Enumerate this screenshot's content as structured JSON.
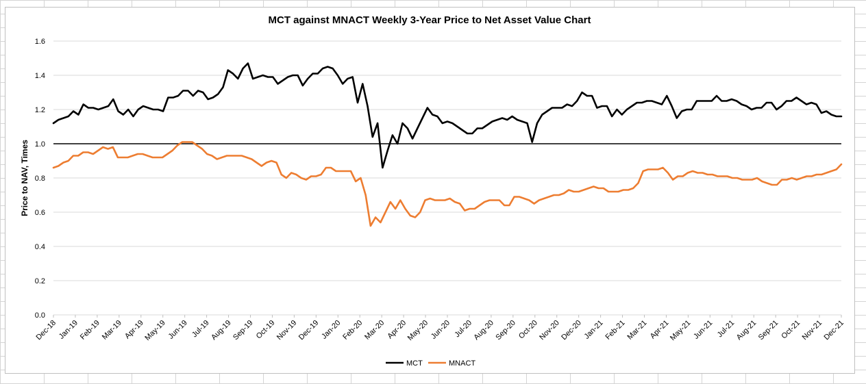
{
  "chart_data": {
    "type": "line",
    "title": "MCT against MNACT Weekly 3-Year Price to Net Asset Value Chart",
    "xlabel": "",
    "ylabel": "Price to NAV, Times",
    "ylim": [
      0,
      1.6
    ],
    "yticks": [
      "0.0",
      "0.2",
      "0.4",
      "0.6",
      "0.8",
      "1.0",
      "1.2",
      "1.4",
      "1.6"
    ],
    "grid": "horizontal",
    "legend": "bottom-center",
    "reference_line": 1.0,
    "x_tick_labels": [
      "Dec-18",
      "Jan-19",
      "Feb-19",
      "Mar-19",
      "Apr-19",
      "May-19",
      "Jun-19",
      "Jul-19",
      "Aug-19",
      "Sep-19",
      "Oct-19",
      "Nov-19",
      "Dec-19",
      "Jan-20",
      "Feb-20",
      "Mar-20",
      "Apr-20",
      "May-20",
      "Jun-20",
      "Jul-20",
      "Aug-20",
      "Sep-20",
      "Oct-20",
      "Nov-20",
      "Dec-20",
      "Jan-21",
      "Feb-21",
      "Mar-21",
      "Apr-21",
      "May-21",
      "Jun-21",
      "Jul-21",
      "Aug-21",
      "Sep-21",
      "Oct-21",
      "Nov-21",
      "Dec-21"
    ],
    "series": [
      {
        "name": "MCT",
        "color": "#000000",
        "values": [
          1.12,
          1.14,
          1.15,
          1.16,
          1.19,
          1.17,
          1.23,
          1.21,
          1.21,
          1.2,
          1.21,
          1.22,
          1.26,
          1.19,
          1.17,
          1.2,
          1.16,
          1.2,
          1.22,
          1.21,
          1.2,
          1.2,
          1.19,
          1.27,
          1.27,
          1.28,
          1.31,
          1.31,
          1.28,
          1.31,
          1.3,
          1.26,
          1.27,
          1.29,
          1.33,
          1.43,
          1.41,
          1.38,
          1.44,
          1.47,
          1.38,
          1.39,
          1.4,
          1.39,
          1.39,
          1.35,
          1.37,
          1.39,
          1.4,
          1.4,
          1.34,
          1.38,
          1.41,
          1.41,
          1.44,
          1.45,
          1.44,
          1.4,
          1.35,
          1.38,
          1.39,
          1.24,
          1.35,
          1.22,
          1.04,
          1.12,
          0.86,
          0.96,
          1.05,
          1.0,
          1.12,
          1.09,
          1.03,
          1.09,
          1.15,
          1.21,
          1.17,
          1.16,
          1.12,
          1.13,
          1.12,
          1.1,
          1.08,
          1.06,
          1.06,
          1.09,
          1.09,
          1.11,
          1.13,
          1.14,
          1.15,
          1.14,
          1.16,
          1.14,
          1.13,
          1.12,
          1.01,
          1.12,
          1.17,
          1.19,
          1.21,
          1.21,
          1.21,
          1.23,
          1.22,
          1.25,
          1.3,
          1.28,
          1.28,
          1.21,
          1.22,
          1.22,
          1.16,
          1.2,
          1.17,
          1.2,
          1.22,
          1.24,
          1.24,
          1.25,
          1.25,
          1.24,
          1.23,
          1.28,
          1.22,
          1.15,
          1.19,
          1.2,
          1.2,
          1.25,
          1.25,
          1.25,
          1.25,
          1.28,
          1.25,
          1.25,
          1.26,
          1.25,
          1.23,
          1.22,
          1.2,
          1.21,
          1.21,
          1.24,
          1.24,
          1.2,
          1.22,
          1.25,
          1.25,
          1.27,
          1.25,
          1.23,
          1.24,
          1.23,
          1.18,
          1.19,
          1.17,
          1.16,
          1.16
        ]
      },
      {
        "name": "MNACT",
        "color": "#ED7D31",
        "values": [
          0.86,
          0.87,
          0.89,
          0.9,
          0.93,
          0.93,
          0.95,
          0.95,
          0.94,
          0.96,
          0.98,
          0.97,
          0.98,
          0.92,
          0.92,
          0.92,
          0.93,
          0.94,
          0.94,
          0.93,
          0.92,
          0.92,
          0.92,
          0.94,
          0.96,
          0.99,
          1.01,
          1.01,
          1.01,
          0.99,
          0.97,
          0.94,
          0.93,
          0.91,
          0.92,
          0.93,
          0.93,
          0.93,
          0.93,
          0.92,
          0.91,
          0.89,
          0.87,
          0.89,
          0.9,
          0.89,
          0.82,
          0.8,
          0.83,
          0.82,
          0.8,
          0.79,
          0.81,
          0.81,
          0.82,
          0.86,
          0.86,
          0.84,
          0.84,
          0.84,
          0.84,
          0.78,
          0.8,
          0.7,
          0.52,
          0.57,
          0.54,
          0.6,
          0.66,
          0.62,
          0.67,
          0.62,
          0.58,
          0.57,
          0.6,
          0.67,
          0.68,
          0.67,
          0.67,
          0.67,
          0.68,
          0.66,
          0.65,
          0.61,
          0.62,
          0.62,
          0.64,
          0.66,
          0.67,
          0.67,
          0.67,
          0.64,
          0.64,
          0.69,
          0.69,
          0.68,
          0.67,
          0.65,
          0.67,
          0.68,
          0.69,
          0.7,
          0.7,
          0.71,
          0.73,
          0.72,
          0.72,
          0.73,
          0.74,
          0.75,
          0.74,
          0.74,
          0.72,
          0.72,
          0.72,
          0.73,
          0.73,
          0.74,
          0.77,
          0.84,
          0.85,
          0.85,
          0.85,
          0.86,
          0.83,
          0.79,
          0.81,
          0.81,
          0.83,
          0.84,
          0.83,
          0.83,
          0.82,
          0.82,
          0.81,
          0.81,
          0.81,
          0.8,
          0.8,
          0.79,
          0.79,
          0.79,
          0.8,
          0.78,
          0.77,
          0.76,
          0.76,
          0.79,
          0.79,
          0.8,
          0.79,
          0.8,
          0.81,
          0.81,
          0.82,
          0.82,
          0.83,
          0.84,
          0.85,
          0.88
        ]
      }
    ]
  }
}
